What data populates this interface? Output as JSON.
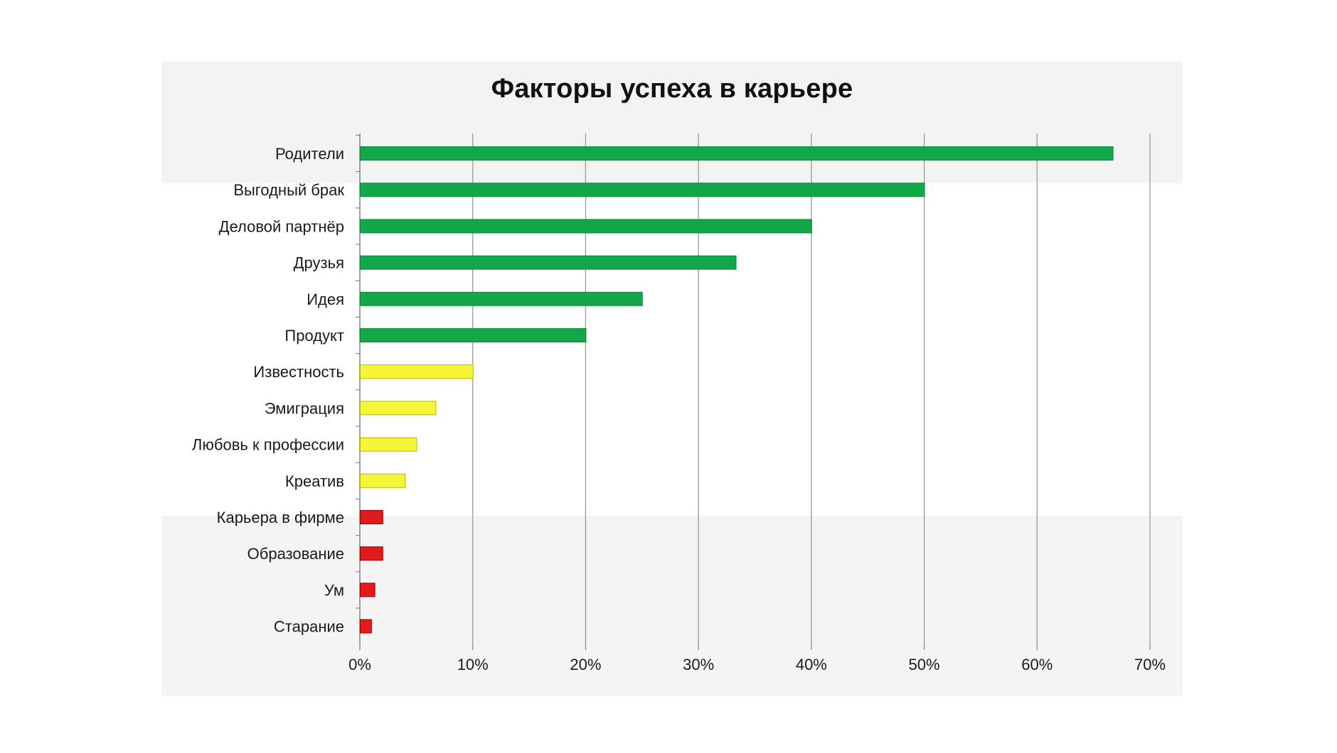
{
  "chart_data": {
    "type": "bar",
    "orientation": "horizontal",
    "title": "Факторы успеха в карьере",
    "xlabel": "",
    "ylabel": "",
    "categories": [
      "Родители",
      "Выгодный брак",
      "Деловой партнёр",
      "Друзья",
      "Идея",
      "Продукт",
      "Известность",
      "Эмиграция",
      "Любовь к профессии",
      "Креатив",
      "Карьера в фирме",
      "Образование",
      "Ум",
      "Старание"
    ],
    "values": [
      0.667,
      0.5,
      0.4,
      0.333,
      0.25,
      0.2,
      0.1,
      0.067,
      0.05,
      0.04,
      0.02,
      0.02,
      0.013,
      0.01
    ],
    "bar_colors": [
      "#12a84a",
      "#12a84a",
      "#12a84a",
      "#12a84a",
      "#12a84a",
      "#12a84a",
      "#f5f53a",
      "#f5f53a",
      "#f5f53a",
      "#f5f53a",
      "#e01b1b",
      "#e01b1b",
      "#e01b1b",
      "#e01b1b"
    ],
    "xlim": [
      0,
      0.7
    ],
    "xticks": [
      "0%",
      "10%",
      "20%",
      "30%",
      "40%",
      "50%",
      "60%",
      "70%"
    ],
    "grid": "vertical",
    "legend": "none"
  }
}
